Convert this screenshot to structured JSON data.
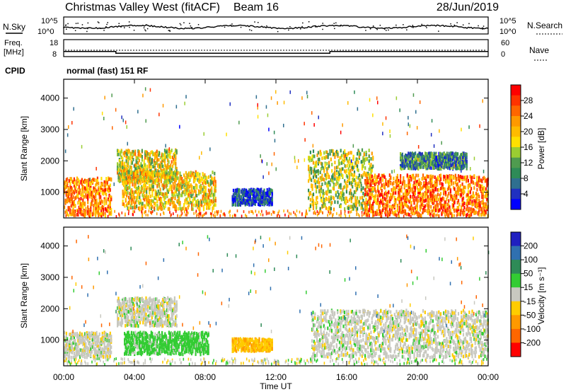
{
  "header": {
    "site": "Christmas Valley West (fitACF)",
    "beam": "Beam 16",
    "date": "28/Jun/2019"
  },
  "noise_panel": {
    "left_label": "N.Sky",
    "right_label": "N.Search",
    "ticks": [
      "10^5",
      "10^0"
    ]
  },
  "freq_panel": {
    "left_label_line1": "Freq.",
    "left_label_line2": "[MHz]",
    "left_ticks": [
      18,
      8
    ],
    "right_label": "Nave",
    "right_ticks": [
      60,
      0
    ],
    "freq_trace": [
      {
        "t": 0.0,
        "mhz": 11
      },
      {
        "t": 2.95,
        "mhz": 11
      },
      {
        "t": 2.95,
        "mhz": 10
      },
      {
        "t": 15.05,
        "mhz": 10
      },
      {
        "t": 15.05,
        "mhz": 11
      },
      {
        "t": 24.0,
        "mhz": 11
      }
    ]
  },
  "cpid": {
    "label": "CPID",
    "value": "normal (fast) 151 RF"
  },
  "chart_data": [
    {
      "type": "heatmap",
      "quantity": "Power",
      "ylabel": "Slant Range [km]",
      "yticks": [
        1000,
        2000,
        3000,
        4000
      ],
      "ylim": [
        180,
        4600
      ],
      "xlim": [
        0,
        24
      ],
      "colorbar": {
        "label": "Power [dB]",
        "ticks": [
          "28",
          "24",
          "20",
          "16",
          "12",
          "8",
          "4"
        ],
        "colors": [
          "#ff0000",
          "#ff3300",
          "#ff6600",
          "#ff9900",
          "#ffbb00",
          "#ffe000",
          "#9acd32",
          "#4f9b4f",
          "#2e8b57",
          "#2f6f8f",
          "#2030c0",
          "#0000ff"
        ]
      },
      "regions": [
        {
          "t0": 0.0,
          "t1": 2.7,
          "r0": 300,
          "r1": 1500,
          "level": 0.75
        },
        {
          "t0": 3.0,
          "t1": 6.4,
          "r0": 1400,
          "r1": 2400,
          "level": 0.55
        },
        {
          "t0": 3.3,
          "t1": 8.6,
          "r0": 500,
          "r1": 1700,
          "level": 0.6
        },
        {
          "t0": 9.5,
          "t1": 11.8,
          "r0": 650,
          "r1": 1150,
          "level": 0.15
        },
        {
          "t0": 13.8,
          "t1": 17.5,
          "r0": 500,
          "r1": 2400,
          "level": 0.5
        },
        {
          "t0": 17.0,
          "t1": 24.0,
          "r0": 300,
          "r1": 1600,
          "level": 0.8
        },
        {
          "t0": 19.0,
          "t1": 22.8,
          "r0": 1800,
          "r1": 2300,
          "level": 0.25
        }
      ]
    },
    {
      "type": "heatmap",
      "quantity": "Velocity",
      "xlabel": "Time UT",
      "ylabel": "Slant Range [km]",
      "yticks": [
        1000,
        2000,
        3000,
        4000
      ],
      "ylim": [
        180,
        4600
      ],
      "xlim": [
        0,
        24
      ],
      "xticks": [
        "00:00",
        "04:00",
        "08:00",
        "12:00",
        "16:00",
        "20:00",
        "00:00"
      ],
      "colorbar": {
        "label": "Velocity [m s⁻¹]",
        "ticks": [
          "200",
          "100",
          "50",
          "15",
          "-15",
          "-50",
          "-100",
          "-200"
        ],
        "colors": [
          "#2020c0",
          "#3070b0",
          "#2e8b57",
          "#33cc33",
          "#c8c8c0",
          "#ffcc00",
          "#ff9900",
          "#ff6600",
          "#ff0000"
        ]
      },
      "regions": [
        {
          "t0": 0.0,
          "t1": 2.7,
          "r0": 500,
          "r1": 1300,
          "v": 0
        },
        {
          "t0": 3.0,
          "t1": 6.4,
          "r0": 1500,
          "r1": 2400,
          "v": 0
        },
        {
          "t0": 3.4,
          "t1": 8.2,
          "r0": 600,
          "r1": 1300,
          "v": 30
        },
        {
          "t0": 9.5,
          "t1": 11.8,
          "r0": 700,
          "r1": 1100,
          "v": -40
        },
        {
          "t0": 14.0,
          "t1": 24.0,
          "r0": 500,
          "r1": 2000,
          "v": 0
        }
      ]
    }
  ]
}
